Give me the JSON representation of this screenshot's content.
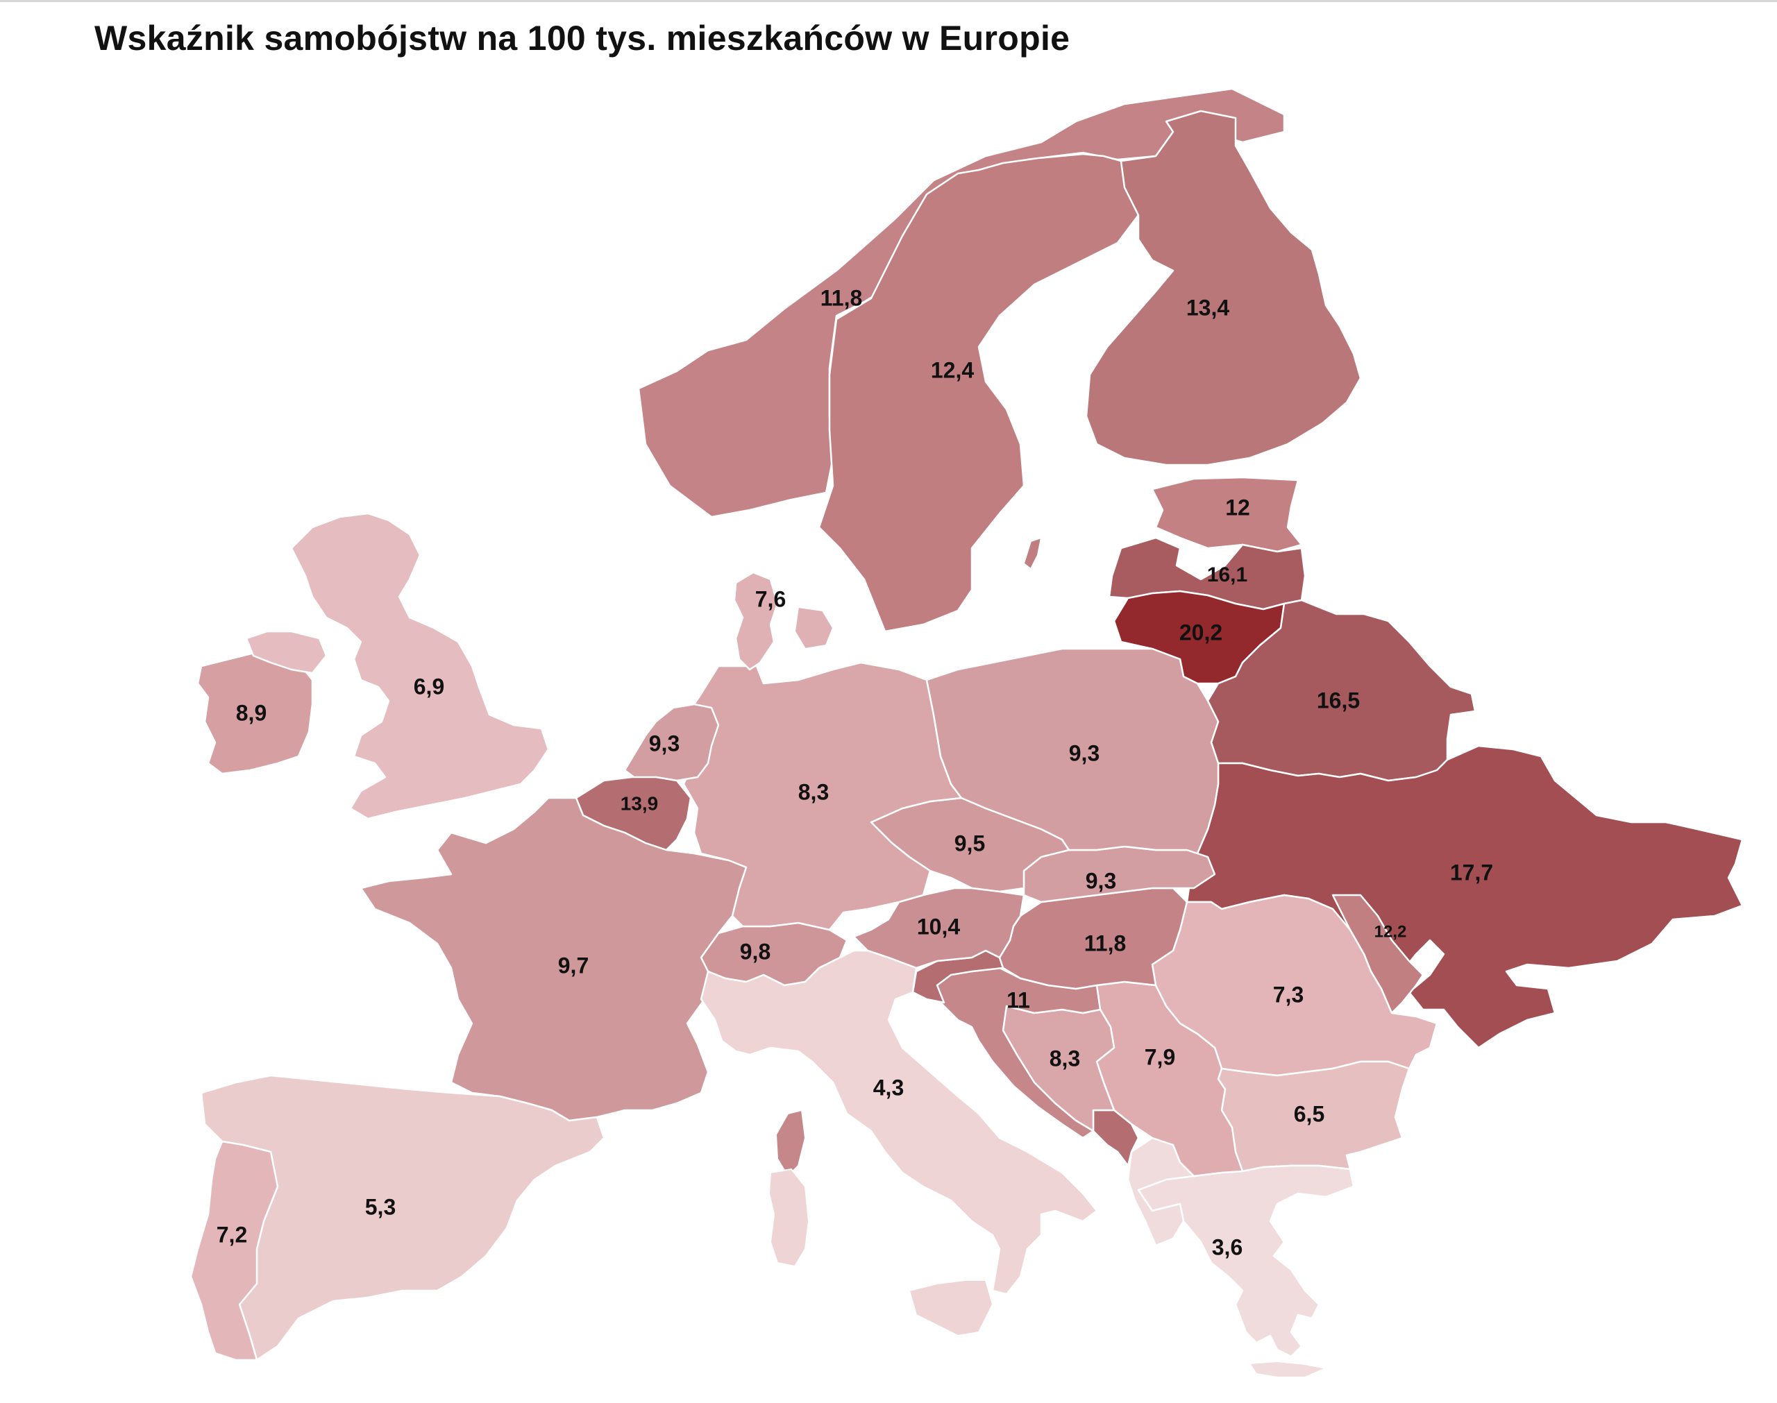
{
  "title": "Wskaźnik samobójstw na 100 tys. mieszkańców w Europie",
  "colors": {
    "v_3_6": "#f1dcdd",
    "v_4_3": "#efd4d6",
    "v_5_3": "#ebcccd",
    "v_6_5": "#e6bfc1",
    "v_6_9": "#e5bcbf",
    "v_7_2": "#e3b6b9",
    "v_7_3": "#e3b5b8",
    "v_7_6": "#e0b1b4",
    "v_7_9": "#dfadb0",
    "v_8_3": "#d9a6a9",
    "v_8_9": "#d6a0a3",
    "v_9_3": "#d39ea1",
    "v_9_5": "#d19a9d",
    "v_9_7": "#cf989b",
    "v_9_8": "#ce9699",
    "v_10_4": "#ca8f92",
    "v_11": "#c58789",
    "v_11_8": "#c48386",
    "v_12": "#c38184",
    "v_12_2": "#c17f82",
    "v_12_4": "#c07e81",
    "v_13_4": "#b97779",
    "v_13_9": "#b46e71",
    "v_16_1": "#a85c5f",
    "v_16_5": "#a65a5d",
    "v_17_7": "#a24e52",
    "v_20_2": "#93292d"
  },
  "labels": {
    "norway": "11,8",
    "sweden": "12,4",
    "finland": "13,4",
    "estonia": "12",
    "latvia": "16,1",
    "lithuania": "20,2",
    "belarus": "16,5",
    "ukraine": "17,7",
    "moldova": "12,2",
    "romania": "7,3",
    "bulgaria": "6,5",
    "greece": "3,6",
    "serbia": "7,9",
    "bosnia": "8,3",
    "croatia": "11",
    "hungary": "11,8",
    "slovakia": "9,3",
    "czechia": "9,5",
    "austria": "10,4",
    "switzerland": "9,8",
    "italy": "4,3",
    "germany": "8,3",
    "poland": "9,3",
    "denmark": "7,6",
    "netherlands": "9,3",
    "belgium": "13,9",
    "france": "9,7",
    "spain": "5,3",
    "portugal": "7,2",
    "ireland": "8,9",
    "uk": "6,9"
  }
}
